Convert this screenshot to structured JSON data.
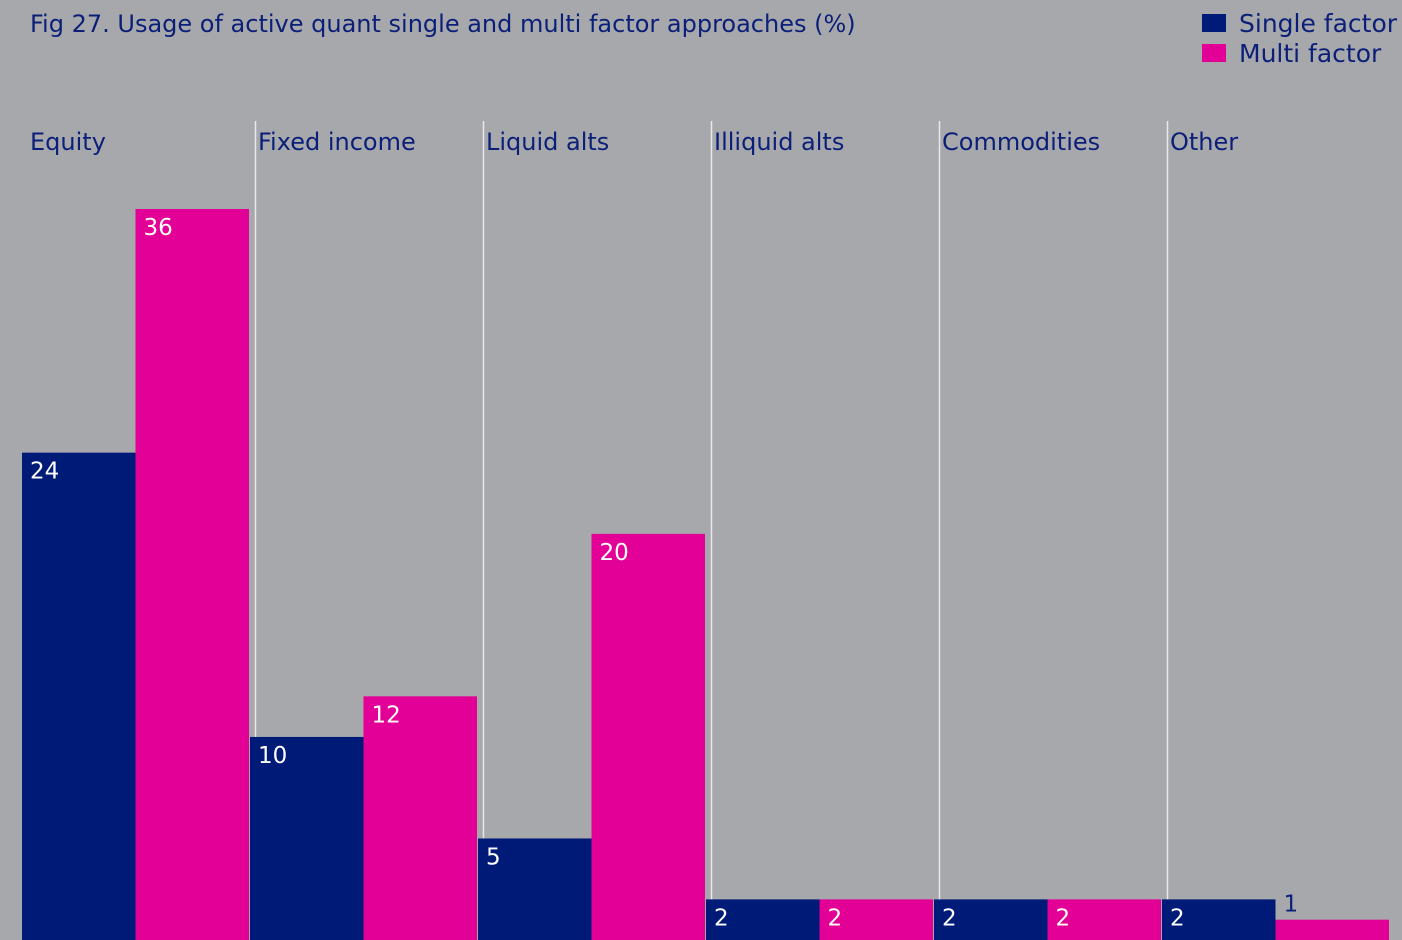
{
  "chart_data": {
    "type": "bar",
    "title": "Fig 27. Usage of active quant single and multi factor approaches (%)",
    "categories": [
      "Equity",
      "Fixed income",
      "Liquid alts",
      "Illiquid alts",
      "Commodities",
      "Other"
    ],
    "series": [
      {
        "name": "Single factor",
        "color": "#001a78",
        "values": [
          24,
          10,
          5,
          2,
          2,
          2
        ]
      },
      {
        "name": "Multi factor",
        "color": "#e20096",
        "values": [
          36,
          12,
          20,
          2,
          2,
          1
        ]
      }
    ],
    "ylim": [
      0,
      36
    ],
    "grid": false,
    "legend_position": "top-right",
    "background": "#a7a8ac",
    "divider_color": "#e8e8ea",
    "text_color": "#0b1f78"
  }
}
